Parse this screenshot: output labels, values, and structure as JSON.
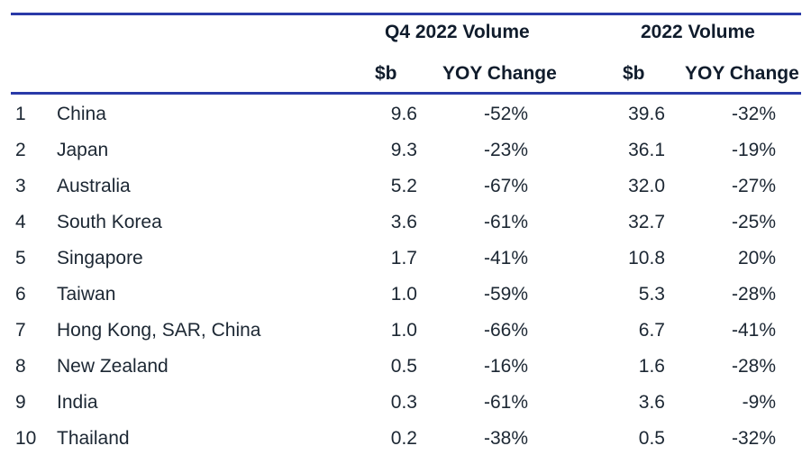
{
  "table": {
    "group_headers": [
      "Q4 2022 Volume",
      "2022 Volume"
    ],
    "sub_headers": [
      "$b",
      "YOY Change",
      "$b",
      "YOY Change"
    ],
    "rows": [
      {
        "rank": "1",
        "country": "China",
        "q4_value": "9.6",
        "q4_yoy": "-52%",
        "year_value": "39.6",
        "year_yoy": "-32%"
      },
      {
        "rank": "2",
        "country": "Japan",
        "q4_value": "9.3",
        "q4_yoy": "-23%",
        "year_value": "36.1",
        "year_yoy": "-19%"
      },
      {
        "rank": "3",
        "country": "Australia",
        "q4_value": "5.2",
        "q4_yoy": "-67%",
        "year_value": "32.0",
        "year_yoy": "-27%"
      },
      {
        "rank": "4",
        "country": "South Korea",
        "q4_value": "3.6",
        "q4_yoy": "-61%",
        "year_value": "32.7",
        "year_yoy": "-25%"
      },
      {
        "rank": "5",
        "country": "Singapore",
        "q4_value": "1.7",
        "q4_yoy": "-41%",
        "year_value": "10.8",
        "year_yoy": "20%"
      },
      {
        "rank": "6",
        "country": "Taiwan",
        "q4_value": "1.0",
        "q4_yoy": "-59%",
        "year_value": "5.3",
        "year_yoy": "-28%"
      },
      {
        "rank": "7",
        "country": "Hong Kong, SAR, China",
        "q4_value": "1.0",
        "q4_yoy": "-66%",
        "year_value": "6.7",
        "year_yoy": "-41%"
      },
      {
        "rank": "8",
        "country": "New Zealand",
        "q4_value": "0.5",
        "q4_yoy": "-16%",
        "year_value": "1.6",
        "year_yoy": "-28%"
      },
      {
        "rank": "9",
        "country": "India",
        "q4_value": "0.3",
        "q4_yoy": "-61%",
        "year_value": "3.6",
        "year_yoy": "-9%"
      },
      {
        "rank": "10",
        "country": "Thailand",
        "q4_value": "0.2",
        "q4_yoy": "-38%",
        "year_value": "0.5",
        "year_yoy": "-32%"
      }
    ]
  },
  "colors": {
    "rule": "#2a3aa8",
    "text": "#1c2733",
    "header_text": "#101c2c"
  }
}
